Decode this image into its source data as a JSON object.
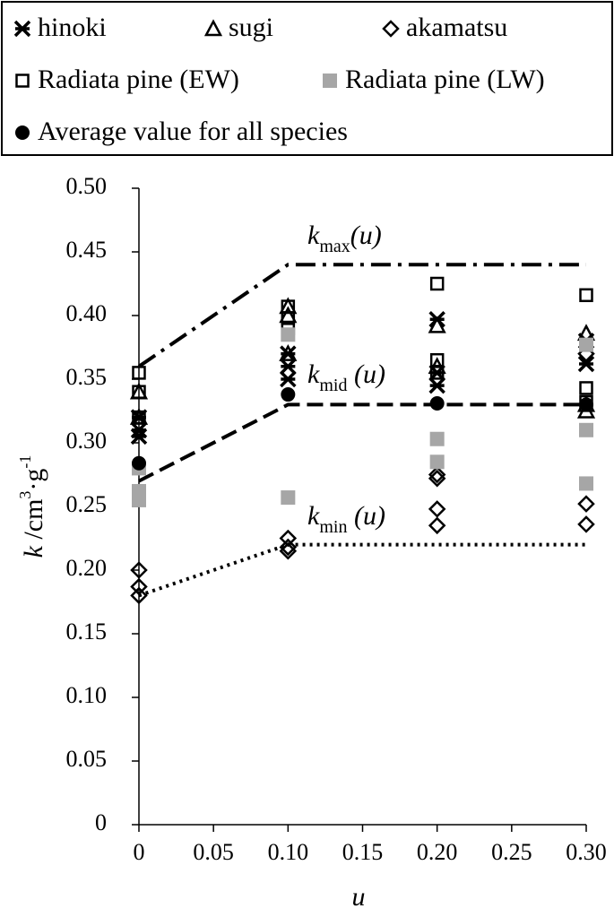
{
  "chart_data": {
    "type": "scatter",
    "x_label": "u",
    "y_label": {
      "k": "k",
      "unit": " /cm",
      "exp1": "3",
      "mid": "·g",
      "exp2": "-1"
    },
    "xlim": [
      0,
      0.3
    ],
    "ylim": [
      0,
      0.5
    ],
    "xticks": [
      0,
      0.05,
      {
        "value": 0.1,
        "label": "0.10"
      },
      0.15,
      {
        "value": 0.2,
        "label": "0.20"
      },
      0.25,
      {
        "value": 0.3,
        "label": "0.30"
      }
    ],
    "yticks": [
      0,
      0.05,
      {
        "value": 0.1,
        "label": "0.10"
      },
      0.15,
      {
        "value": 0.2,
        "label": "0.20"
      },
      0.25,
      {
        "value": 0.3,
        "label": "0.30"
      },
      0.35,
      {
        "value": 0.4,
        "label": "0.40"
      },
      0.45,
      {
        "value": 0.5,
        "label": "0.50"
      }
    ],
    "series": [
      {
        "name": "hinoki",
        "marker": "x",
        "color": "#000000",
        "x": [
          0,
          0,
          0,
          0.1,
          0.1,
          0.1,
          0.2,
          0.2,
          0.2,
          0.3,
          0.3
        ],
        "values": [
          0.305,
          0.31,
          0.32,
          0.36,
          0.35,
          0.37,
          0.397,
          0.355,
          0.345,
          0.38,
          0.362
        ]
      },
      {
        "name": "sugi",
        "marker": "triangle",
        "color": "#000000",
        "x": [
          0,
          0,
          0.1,
          0.1,
          0.1,
          0.2,
          0.2,
          0.3,
          0.3,
          0.3
        ],
        "values": [
          0.34,
          0.32,
          0.407,
          0.37,
          0.4,
          0.392,
          0.36,
          0.386,
          0.325,
          0.33
        ]
      },
      {
        "name": "akamatsu",
        "marker": "diamond",
        "color": "#000000",
        "x": [
          0,
          0,
          0,
          0.1,
          0.1,
          0.1,
          0.2,
          0.2,
          0.2,
          0.2,
          0.3,
          0.3,
          0.3
        ],
        "values": [
          0.2,
          0.187,
          0.18,
          0.225,
          0.218,
          0.215,
          0.272,
          0.248,
          0.235,
          0.275,
          0.252,
          0.236,
          0.37
        ]
      },
      {
        "name": "Radiata pine (EW)",
        "marker": "square",
        "color": "#000000",
        "x": [
          0,
          0,
          0,
          0.1,
          0.1,
          0.1,
          0.2,
          0.2,
          0.2,
          0.3,
          0.3,
          0.3
        ],
        "values": [
          0.355,
          0.34,
          0.32,
          0.407,
          0.39,
          0.398,
          0.425,
          0.365,
          0.355,
          0.416,
          0.343,
          0.332
        ]
      },
      {
        "name": "Radiata pine (LW)",
        "marker": "square-filled",
        "color": "#a6a6a6",
        "x": [
          0,
          0,
          0,
          0.1,
          0.1,
          0.2,
          0.2,
          0.3,
          0.3,
          0.3
        ],
        "values": [
          0.262,
          0.255,
          0.28,
          0.257,
          0.385,
          0.303,
          0.285,
          0.31,
          0.268,
          0.377
        ]
      },
      {
        "name": "Average value for all species",
        "marker": "circle",
        "color": "#000000",
        "x": [
          0,
          0.1,
          0.2,
          0.3
        ],
        "values": [
          0.284,
          0.338,
          0.331,
          0.33
        ]
      }
    ],
    "lines": [
      {
        "x": [
          0,
          0.1,
          0.3
        ],
        "values": [
          0.36,
          0.44,
          0.44
        ],
        "dash": "dashdot",
        "label": {
          "k": "k",
          "sub": "max",
          "arg": "(u)"
        }
      },
      {
        "x": [
          0,
          0.1,
          0.3
        ],
        "values": [
          0.27,
          0.33,
          0.33
        ],
        "dash": "dash",
        "label": {
          "k": "k",
          "sub": "mid",
          "arg": " (u)"
        }
      },
      {
        "x": [
          0,
          0.1,
          0.3
        ],
        "values": [
          0.18,
          0.22,
          0.22
        ],
        "dash": "dot",
        "label": {
          "k": "k",
          "sub": "min",
          "arg": " (u)"
        }
      }
    ]
  }
}
